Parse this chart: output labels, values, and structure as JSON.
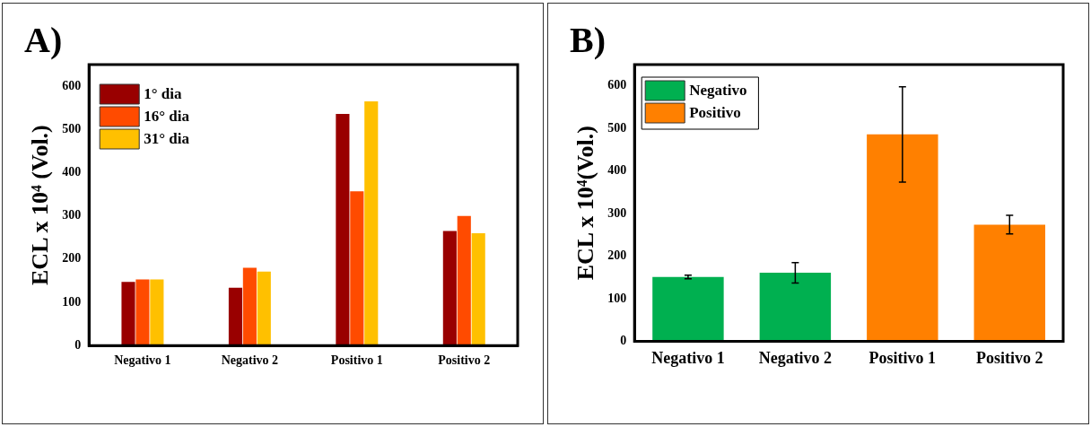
{
  "chart_data": [
    {
      "type": "bar",
      "title": "A)",
      "ylabel": "ECL x 10⁴ (Vol.)",
      "categories": [
        "Negativo 1",
        "Negativo 2",
        "Positivo 1",
        "Positivo 2"
      ],
      "series": [
        {
          "name": "1° dia",
          "color": "#990000",
          "values": [
            147,
            134,
            536,
            265
          ]
        },
        {
          "name": "16° dia",
          "color": "#ff4b00",
          "values": [
            153,
            180,
            357,
            300
          ]
        },
        {
          "name": "31° dia",
          "color": "#ffc000",
          "values": [
            153,
            171,
            565,
            260
          ]
        }
      ],
      "ylim": [
        0,
        650
      ],
      "yticks": [
        0,
        100,
        200,
        300,
        400,
        500,
        600
      ],
      "grid": false,
      "legend": "top left"
    },
    {
      "type": "bar",
      "title": "B)",
      "ylabel": "ECL x 10⁴(Vol.)",
      "categories": [
        "Negativo 1",
        "Negativo 2",
        "Positivo 1",
        "Positivo 2"
      ],
      "series": [
        {
          "name": "Negativo",
          "color": "#00b050",
          "values": [
            151,
            161,
            null,
            null
          ],
          "errors": [
            4,
            24,
            null,
            null
          ]
        },
        {
          "name": "Positivo",
          "color": "#ff8000",
          "values": [
            null,
            null,
            486,
            274
          ],
          "errors": [
            null,
            null,
            112,
            22
          ]
        }
      ],
      "ylim": [
        0,
        650
      ],
      "yticks": [
        0,
        100,
        200,
        300,
        400,
        500,
        600
      ],
      "grid": false,
      "legend": "top left"
    }
  ]
}
